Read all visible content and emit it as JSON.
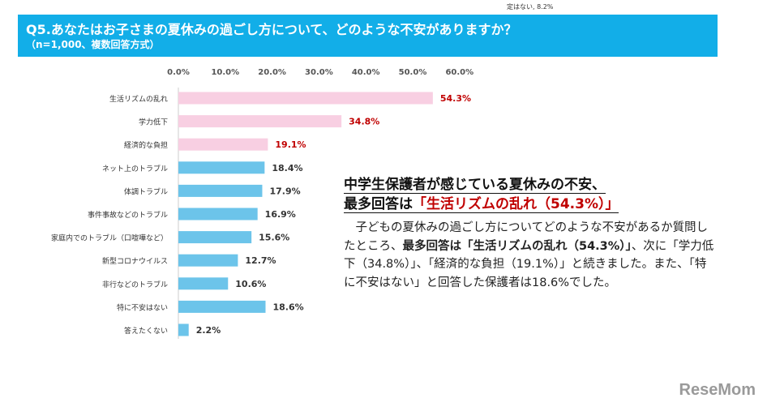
{
  "top_note": "定はない, 8.2%",
  "header": {
    "title": "Q5.あなたはお子さまの夏休みの過ごし方について、どのような不安がありますか？",
    "subtitle": "（n=1,000、複数回答方式）"
  },
  "chart_data": {
    "type": "bar",
    "orientation": "horizontal",
    "title": "Q5.あなたはお子さまの夏休みの過ごし方について、どのような不安がありますか？",
    "xlim": [
      0,
      60
    ],
    "ticks": [
      "0.0%",
      "10.0%",
      "20.0%",
      "30.0%",
      "40.0%",
      "50.0%",
      "60.0%"
    ],
    "categories": [
      "生活リズムの乱れ",
      "学力低下",
      "経済的な負担",
      "ネット上のトラブル",
      "体調トラブル",
      "事件事故などのトラブル",
      "家庭内でのトラブル（口喧嘩など）",
      "新型コロナウイルス",
      "非行などのトラブル",
      "特に不安はない",
      "答えたくない"
    ],
    "values": [
      54.3,
      34.8,
      19.1,
      18.4,
      17.9,
      16.9,
      15.6,
      12.7,
      10.6,
      18.6,
      2.2
    ],
    "labels": [
      "54.3%",
      "34.8%",
      "19.1%",
      "18.4%",
      "17.9%",
      "16.9%",
      "15.6%",
      "12.7%",
      "10.6%",
      "18.6%",
      "2.2%"
    ],
    "highlight_count": 3,
    "colors": {
      "highlight": "#f8cfe2",
      "normal": "#6cc4ea",
      "highlight_label": "#c00000",
      "normal_label": "#333333"
    }
  },
  "article": {
    "heading_line1": "中学生保護者が感じている夏休みの不安、",
    "heading_line2_prefix": "最多回答は",
    "heading_line2_red": "「生活リズムの乱れ（54.3%）」",
    "body_1": "子どもの夏休みの過ごし方についてどのような不安があるか質問したところ、",
    "body_bold": "最多回答は「生活リズムの乱れ（54.3%）」",
    "body_2": "、次に「学力低下（34.8%）」、「経済的な負担（19.1%）」と続きました。また、「特に不安はない」と回答した保護者は18.6%でした。"
  },
  "logo": "ReseMom"
}
